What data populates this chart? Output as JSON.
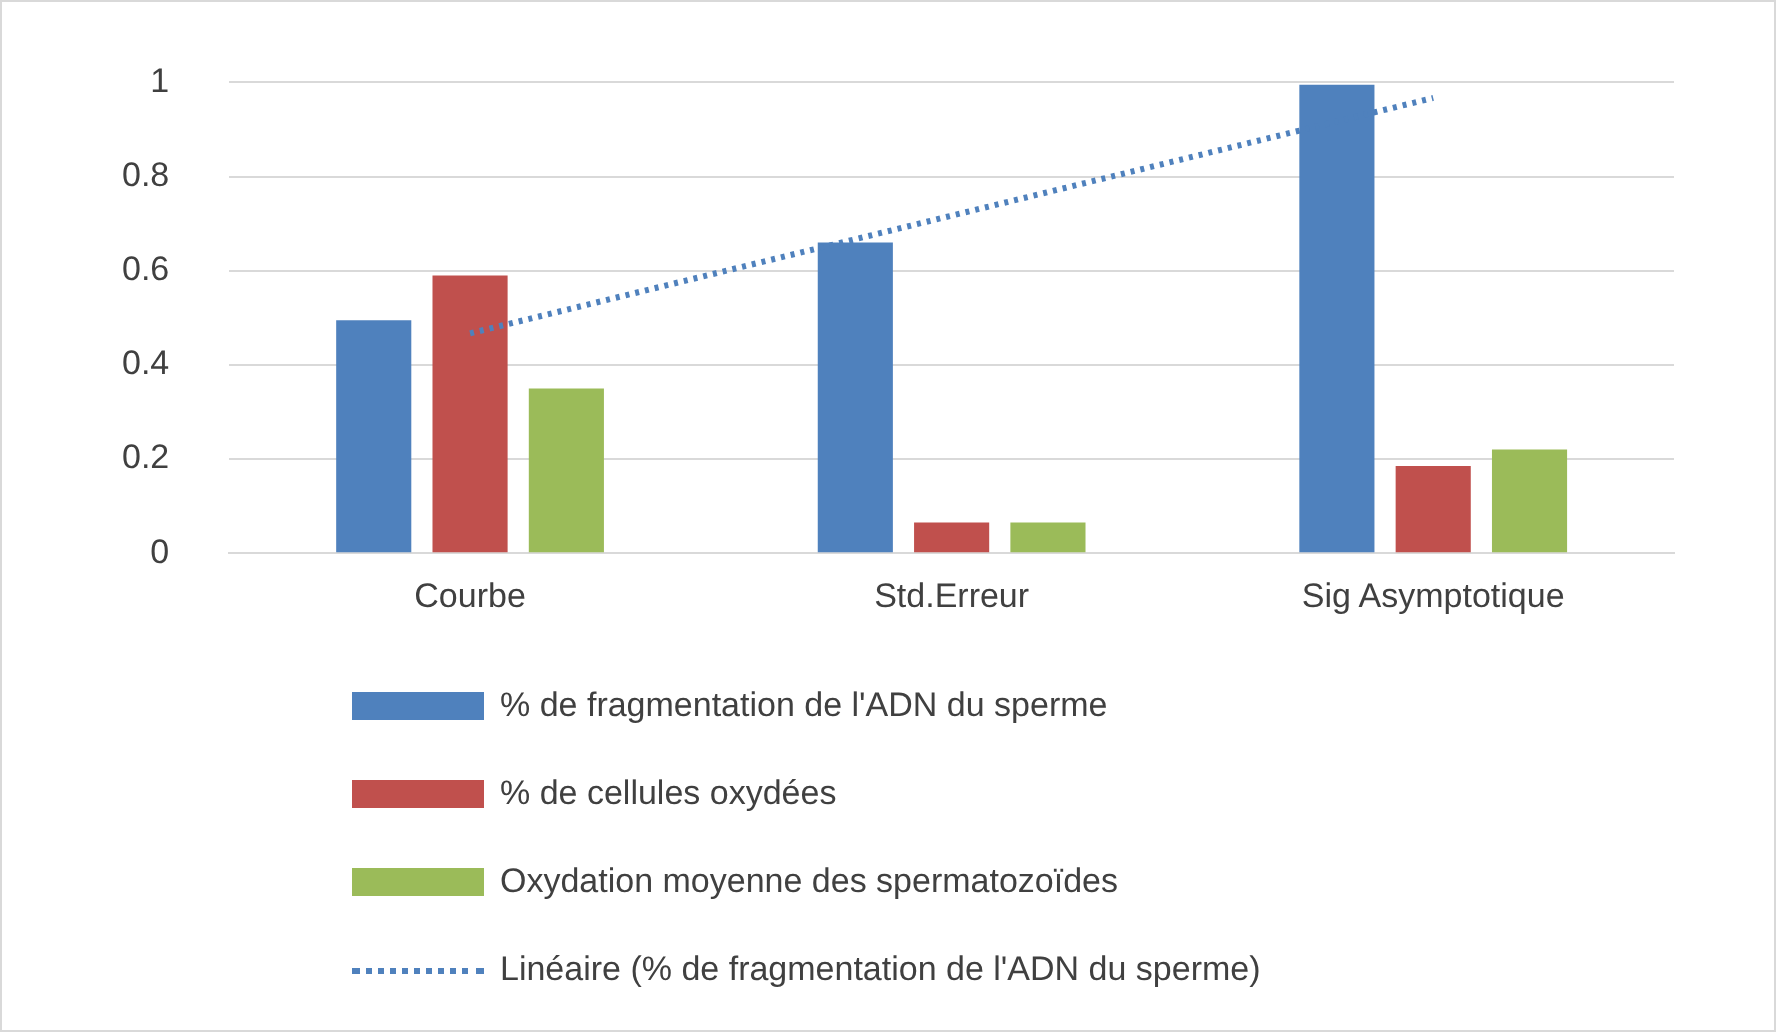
{
  "chart_data": {
    "type": "bar",
    "categories": [
      "Courbe",
      "Std.Erreur",
      "Sig Asymptotique"
    ],
    "series": [
      {
        "name": "% de fragmentation de l'ADN du sperme",
        "color": "#4f81bd",
        "values": [
          0.495,
          0.66,
          0.995
        ]
      },
      {
        "name": "% de cellules oxydées",
        "color": "#c0504d",
        "values": [
          0.59,
          0.065,
          0.185
        ]
      },
      {
        "name": "Oxydation moyenne des spermatozoïdes",
        "color": "#9bbb59",
        "values": [
          0.35,
          0.065,
          0.22
        ]
      },
      {
        "name": "Linéaire (% de fragmentation de l'ADN du sperme)",
        "type": "line",
        "color": "#4f81bd",
        "line_style": "dotted",
        "marker": "none",
        "x": [
          "Courbe",
          "Std.Erreur",
          "Sig Asymptotique"
        ],
        "values": [
          0.467,
          0.717,
          0.967
        ]
      }
    ],
    "ylim": [
      0,
      1
    ],
    "yticks": [
      0,
      0.2,
      0.4,
      0.6,
      0.8,
      1
    ],
    "grid": "y",
    "legend": "bottom"
  }
}
